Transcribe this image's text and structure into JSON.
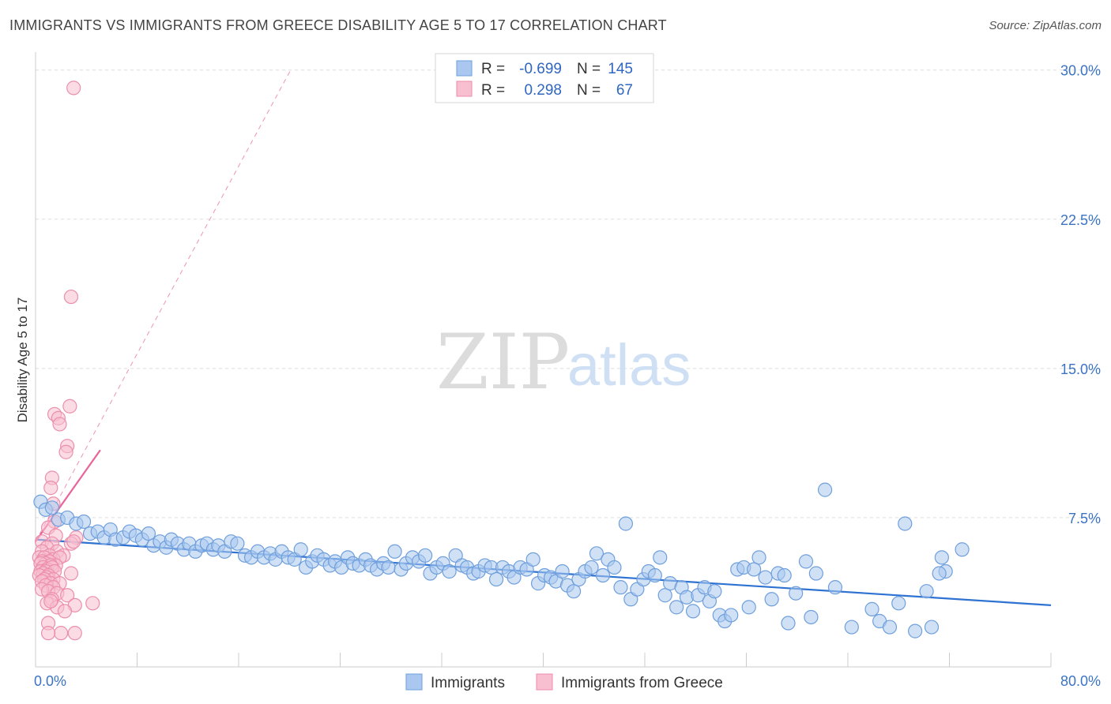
{
  "title": "IMMIGRANTS VS IMMIGRANTS FROM GREECE DISABILITY AGE 5 TO 17 CORRELATION CHART",
  "source": "Source: ZipAtlas.com",
  "watermark": {
    "zip": "ZIP",
    "atlas": "atlas"
  },
  "colors": {
    "blue_fill": "#aac8ef",
    "blue_stroke": "#6f9fdc",
    "blue_line": "#2e72d2",
    "pink_fill": "#f7bfd0",
    "pink_stroke": "#ec8eac",
    "pink_line": "#e8649a",
    "grid": "#dddddd",
    "axis_text": "#3b73c4"
  },
  "legend": {
    "rows": [
      {
        "r_label": "R =",
        "r_value": "-0.699",
        "n_label": "N =",
        "n_value": "145"
      },
      {
        "r_label": "R =",
        "r_value": "0.298",
        "n_label": "N =",
        "n_value": "67"
      }
    ]
  },
  "chart_data": {
    "type": "scatter",
    "title": "IMMIGRANTS VS IMMIGRANTS FROM GREECE DISABILITY AGE 5 TO 17 CORRELATION CHART",
    "xlabel": "",
    "ylabel": "Disability Age 5 to 17",
    "xlim": [
      0,
      80
    ],
    "ylim": [
      0,
      30.9
    ],
    "x_tick_labels": [
      "0.0%",
      "80.0%"
    ],
    "y_ticks": [
      7.5,
      15.0,
      22.5,
      30.0
    ],
    "y_tick_labels": [
      "7.5%",
      "15.0%",
      "22.5%",
      "30.0%"
    ],
    "grid": true,
    "legend_position": "bottom-center",
    "series": [
      {
        "name": "Immigrants",
        "color": "#aac8ef",
        "trend": {
          "x": [
            0,
            80
          ],
          "y": [
            6.4,
            3.1
          ]
        },
        "points": [
          [
            0.4,
            8.3
          ],
          [
            0.8,
            7.9
          ],
          [
            1.3,
            8.0
          ],
          [
            1.8,
            7.4
          ],
          [
            2.5,
            7.5
          ],
          [
            3.2,
            7.2
          ],
          [
            3.8,
            7.3
          ],
          [
            4.3,
            6.7
          ],
          [
            4.9,
            6.8
          ],
          [
            5.4,
            6.5
          ],
          [
            5.9,
            6.9
          ],
          [
            6.3,
            6.4
          ],
          [
            6.9,
            6.5
          ],
          [
            7.4,
            6.8
          ],
          [
            7.9,
            6.6
          ],
          [
            8.4,
            6.4
          ],
          [
            8.9,
            6.7
          ],
          [
            9.3,
            6.1
          ],
          [
            9.8,
            6.3
          ],
          [
            10.3,
            6.0
          ],
          [
            10.7,
            6.4
          ],
          [
            11.2,
            6.2
          ],
          [
            11.7,
            5.9
          ],
          [
            12.1,
            6.2
          ],
          [
            12.6,
            5.8
          ],
          [
            13.1,
            6.1
          ],
          [
            13.5,
            6.2
          ],
          [
            14.0,
            5.9
          ],
          [
            14.4,
            6.1
          ],
          [
            14.9,
            5.8
          ],
          [
            15.4,
            6.3
          ],
          [
            15.9,
            6.2
          ],
          [
            16.5,
            5.6
          ],
          [
            17.0,
            5.5
          ],
          [
            17.5,
            5.8
          ],
          [
            18.0,
            5.5
          ],
          [
            18.5,
            5.7
          ],
          [
            18.9,
            5.4
          ],
          [
            19.4,
            5.8
          ],
          [
            19.9,
            5.5
          ],
          [
            20.4,
            5.4
          ],
          [
            20.9,
            5.9
          ],
          [
            21.3,
            5.0
          ],
          [
            21.8,
            5.3
          ],
          [
            22.2,
            5.6
          ],
          [
            22.7,
            5.4
          ],
          [
            23.2,
            5.1
          ],
          [
            23.6,
            5.3
          ],
          [
            24.1,
            5.0
          ],
          [
            24.6,
            5.5
          ],
          [
            25.0,
            5.2
          ],
          [
            25.5,
            5.1
          ],
          [
            26.0,
            5.4
          ],
          [
            26.4,
            5.1
          ],
          [
            26.9,
            4.9
          ],
          [
            27.4,
            5.2
          ],
          [
            27.8,
            5.0
          ],
          [
            28.3,
            5.8
          ],
          [
            28.8,
            4.9
          ],
          [
            29.2,
            5.2
          ],
          [
            29.7,
            5.5
          ],
          [
            30.2,
            5.3
          ],
          [
            30.7,
            5.6
          ],
          [
            31.1,
            4.7
          ],
          [
            31.6,
            5.0
          ],
          [
            32.1,
            5.2
          ],
          [
            32.6,
            4.8
          ],
          [
            33.1,
            5.6
          ],
          [
            33.6,
            5.1
          ],
          [
            34.0,
            5.0
          ],
          [
            34.5,
            4.7
          ],
          [
            34.9,
            4.8
          ],
          [
            35.4,
            5.1
          ],
          [
            35.9,
            5.0
          ],
          [
            36.3,
            4.4
          ],
          [
            36.8,
            5.0
          ],
          [
            37.3,
            4.8
          ],
          [
            37.7,
            4.5
          ],
          [
            38.2,
            5.0
          ],
          [
            38.7,
            4.9
          ],
          [
            39.2,
            5.4
          ],
          [
            39.6,
            4.2
          ],
          [
            40.1,
            4.6
          ],
          [
            40.6,
            4.5
          ],
          [
            41.0,
            4.3
          ],
          [
            41.5,
            4.8
          ],
          [
            41.9,
            4.1
          ],
          [
            42.4,
            3.8
          ],
          [
            42.8,
            4.4
          ],
          [
            43.3,
            4.8
          ],
          [
            43.8,
            5.0
          ],
          [
            44.2,
            5.7
          ],
          [
            44.7,
            4.6
          ],
          [
            45.1,
            5.4
          ],
          [
            45.6,
            5.0
          ],
          [
            46.1,
            4.0
          ],
          [
            46.5,
            7.2
          ],
          [
            46.9,
            3.4
          ],
          [
            47.4,
            3.9
          ],
          [
            47.9,
            4.4
          ],
          [
            48.3,
            4.8
          ],
          [
            48.8,
            4.6
          ],
          [
            49.2,
            5.5
          ],
          [
            49.6,
            3.6
          ],
          [
            50.0,
            4.2
          ],
          [
            50.5,
            3.0
          ],
          [
            50.9,
            4.0
          ],
          [
            51.3,
            3.5
          ],
          [
            51.8,
            2.8
          ],
          [
            52.2,
            3.6
          ],
          [
            52.7,
            4.0
          ],
          [
            53.1,
            3.3
          ],
          [
            53.5,
            3.8
          ],
          [
            53.9,
            2.6
          ],
          [
            54.3,
            2.3
          ],
          [
            54.8,
            2.6
          ],
          [
            55.3,
            4.9
          ],
          [
            55.8,
            5.0
          ],
          [
            56.2,
            3.0
          ],
          [
            56.6,
            4.9
          ],
          [
            57.0,
            5.5
          ],
          [
            57.5,
            4.5
          ],
          [
            58.0,
            3.4
          ],
          [
            58.5,
            4.7
          ],
          [
            59.0,
            4.6
          ],
          [
            59.3,
            2.2
          ],
          [
            59.9,
            3.7
          ],
          [
            60.7,
            5.3
          ],
          [
            61.1,
            2.5
          ],
          [
            61.5,
            4.7
          ],
          [
            62.2,
            8.9
          ],
          [
            63.0,
            4.0
          ],
          [
            64.3,
            2.0
          ],
          [
            65.9,
            2.9
          ],
          [
            66.5,
            2.3
          ],
          [
            67.3,
            2.0
          ],
          [
            68.0,
            3.2
          ],
          [
            68.5,
            7.2
          ],
          [
            69.3,
            1.8
          ],
          [
            70.2,
            3.8
          ],
          [
            70.6,
            2.0
          ],
          [
            71.4,
            5.5
          ],
          [
            71.7,
            4.8
          ],
          [
            73.0,
            5.9
          ],
          [
            71.2,
            4.7
          ]
        ]
      },
      {
        "name": "Immigrants from Greece",
        "color": "#f7bfd0",
        "trend": {
          "x": [
            0,
            5.1
          ],
          "y": [
            6.3,
            10.9
          ],
          "extended": {
            "x": [
              0,
              20.1
            ],
            "y": [
              6.3,
              30.0
            ]
          }
        },
        "points": [
          [
            3.0,
            29.1
          ],
          [
            2.8,
            18.6
          ],
          [
            2.7,
            13.1
          ],
          [
            1.5,
            12.7
          ],
          [
            1.8,
            12.5
          ],
          [
            1.9,
            12.2
          ],
          [
            2.5,
            11.1
          ],
          [
            2.4,
            10.8
          ],
          [
            1.3,
            9.5
          ],
          [
            1.2,
            9.0
          ],
          [
            1.4,
            8.2
          ],
          [
            1.5,
            7.3
          ],
          [
            1.0,
            7.0
          ],
          [
            1.6,
            6.6
          ],
          [
            3.2,
            6.5
          ],
          [
            0.5,
            6.3
          ],
          [
            1.3,
            6.2
          ],
          [
            2.8,
            6.2
          ],
          [
            0.9,
            6.0
          ],
          [
            3.0,
            6.3
          ],
          [
            1.7,
            5.8
          ],
          [
            0.5,
            5.8
          ],
          [
            2.2,
            5.6
          ],
          [
            1.1,
            5.6
          ],
          [
            0.3,
            5.5
          ],
          [
            0.7,
            5.5
          ],
          [
            1.4,
            5.4
          ],
          [
            1.9,
            5.5
          ],
          [
            0.5,
            5.3
          ],
          [
            1.1,
            5.3
          ],
          [
            0.8,
            5.2
          ],
          [
            1.6,
            5.1
          ],
          [
            0.4,
            5.2
          ],
          [
            1.2,
            5.1
          ],
          [
            0.6,
            5.0
          ],
          [
            0.9,
            4.9
          ],
          [
            1.3,
            5.0
          ],
          [
            0.4,
            4.8
          ],
          [
            0.8,
            4.8
          ],
          [
            1.5,
            4.8
          ],
          [
            2.8,
            4.7
          ],
          [
            0.6,
            4.7
          ],
          [
            1.0,
            4.6
          ],
          [
            0.3,
            4.6
          ],
          [
            0.9,
            4.5
          ],
          [
            1.4,
            4.4
          ],
          [
            0.7,
            4.4
          ],
          [
            0.5,
            4.3
          ],
          [
            1.2,
            4.2
          ],
          [
            1.9,
            4.2
          ],
          [
            0.8,
            4.1
          ],
          [
            1.4,
            4.0
          ],
          [
            0.5,
            3.9
          ],
          [
            1.0,
            3.8
          ],
          [
            1.7,
            3.7
          ],
          [
            2.5,
            3.6
          ],
          [
            1.3,
            3.4
          ],
          [
            0.9,
            3.2
          ],
          [
            3.1,
            3.1
          ],
          [
            4.5,
            3.2
          ],
          [
            1.7,
            3.0
          ],
          [
            2.3,
            2.8
          ],
          [
            1.0,
            2.2
          ],
          [
            2.0,
            1.7
          ],
          [
            1.0,
            1.7
          ],
          [
            3.1,
            1.7
          ],
          [
            1.2,
            3.3
          ]
        ]
      }
    ]
  }
}
